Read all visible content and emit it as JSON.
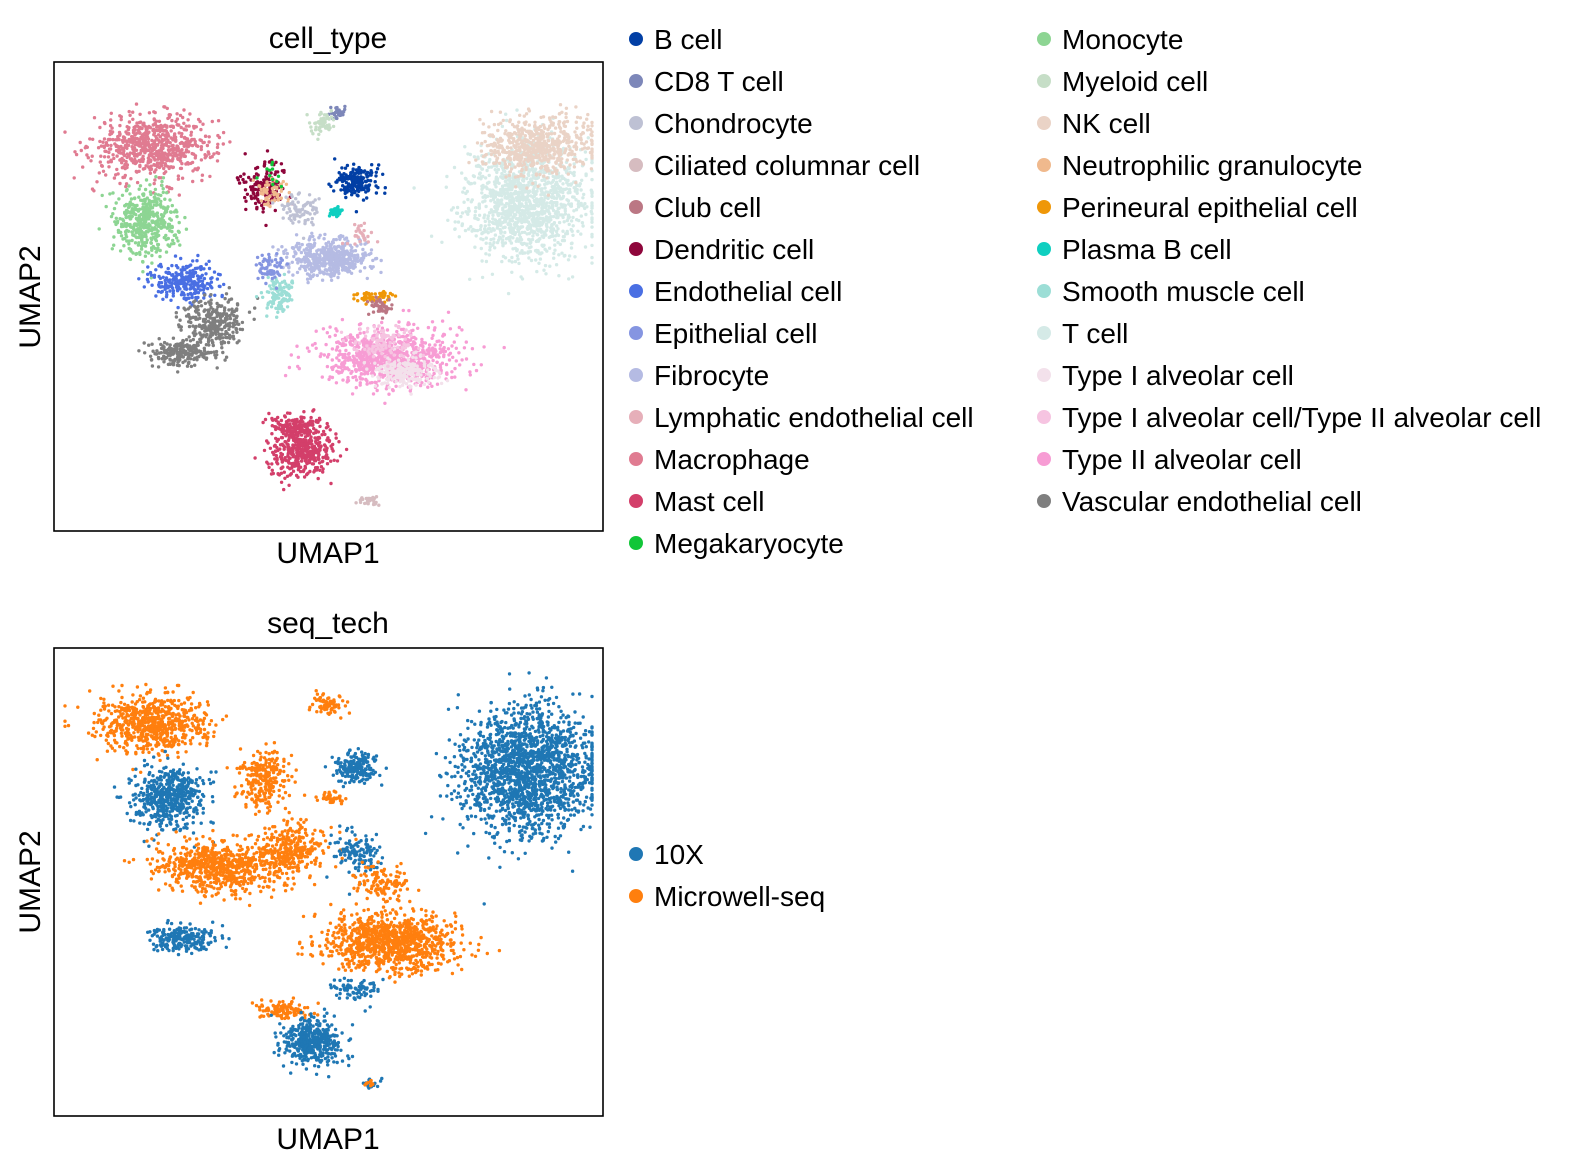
{
  "chart_data": [
    {
      "type": "scatter",
      "title": "cell_type",
      "xlabel": "UMAP1",
      "ylabel": "UMAP2",
      "ticks": "none",
      "grid": false,
      "legend_placement": "right, two columns",
      "categories": [
        {
          "name": "B cell",
          "color": "#023fa5"
        },
        {
          "name": "CD8 T cell",
          "color": "#7d87b9"
        },
        {
          "name": "Chondrocyte",
          "color": "#bec1d4"
        },
        {
          "name": "Ciliated columnar cell",
          "color": "#d6bcc0"
        },
        {
          "name": "Club cell",
          "color": "#bb7784"
        },
        {
          "name": "Dendritic cell",
          "color": "#8e063b"
        },
        {
          "name": "Endothelial cell",
          "color": "#4a6fe3"
        },
        {
          "name": "Epithelial cell",
          "color": "#8595e1"
        },
        {
          "name": "Fibrocyte",
          "color": "#b5bbe3"
        },
        {
          "name": "Lymphatic endothelial cell",
          "color": "#e6afb9"
        },
        {
          "name": "Macrophage",
          "color": "#e07b91"
        },
        {
          "name": "Mast cell",
          "color": "#d33f6a"
        },
        {
          "name": "Megakaryocyte",
          "color": "#11c638"
        },
        {
          "name": "Monocyte",
          "color": "#8dd593"
        },
        {
          "name": "Myeloid cell",
          "color": "#c6dec7"
        },
        {
          "name": "NK cell",
          "color": "#ead3c6"
        },
        {
          "name": "Neutrophilic granulocyte",
          "color": "#f0b98d"
        },
        {
          "name": "Perineural epithelial cell",
          "color": "#ef9708"
        },
        {
          "name": "Plasma B cell",
          "color": "#0fcfc0"
        },
        {
          "name": "Smooth muscle cell",
          "color": "#9cded6"
        },
        {
          "name": "T cell",
          "color": "#d5eae7"
        },
        {
          "name": "Type I alveolar cell",
          "color": "#f3e1eb"
        },
        {
          "name": "Type I alveolar cell/Type II alveolar cell",
          "color": "#f6c4e1"
        },
        {
          "name": "Type II alveolar cell",
          "color": "#f79cd4"
        },
        {
          "name": "Vascular endothelial cell",
          "color": "#7f7f7f"
        }
      ],
      "clusters": [
        {
          "category": "Macrophage",
          "cx": 0.18,
          "cy": 0.82,
          "sx": 0.1,
          "sy": 0.06,
          "n": 700
        },
        {
          "category": "Monocyte",
          "cx": 0.17,
          "cy": 0.66,
          "sx": 0.05,
          "sy": 0.065,
          "n": 450
        },
        {
          "category": "Dendritic cell",
          "cx": 0.38,
          "cy": 0.74,
          "sx": 0.04,
          "sy": 0.05,
          "n": 150
        },
        {
          "category": "Neutrophilic granulocyte",
          "cx": 0.4,
          "cy": 0.72,
          "sx": 0.025,
          "sy": 0.03,
          "n": 60
        },
        {
          "category": "T cell",
          "cx": 0.86,
          "cy": 0.7,
          "sx": 0.1,
          "sy": 0.11,
          "n": 1300
        },
        {
          "category": "NK cell",
          "cx": 0.88,
          "cy": 0.82,
          "sx": 0.09,
          "sy": 0.055,
          "n": 600
        },
        {
          "category": "B cell",
          "cx": 0.55,
          "cy": 0.745,
          "sx": 0.035,
          "sy": 0.03,
          "n": 200
        },
        {
          "category": "Plasma B cell",
          "cx": 0.513,
          "cy": 0.68,
          "sx": 0.01,
          "sy": 0.01,
          "n": 40
        },
        {
          "category": "CD8 T cell",
          "cx": 0.52,
          "cy": 0.89,
          "sx": 0.015,
          "sy": 0.012,
          "n": 35
        },
        {
          "category": "Myeloid cell",
          "cx": 0.49,
          "cy": 0.87,
          "sx": 0.02,
          "sy": 0.02,
          "n": 60
        },
        {
          "category": "Fibrocyte",
          "cx": 0.5,
          "cy": 0.58,
          "sx": 0.07,
          "sy": 0.035,
          "n": 500
        },
        {
          "category": "Endothelial cell",
          "cx": 0.24,
          "cy": 0.53,
          "sx": 0.05,
          "sy": 0.04,
          "n": 250
        },
        {
          "category": "Vascular endothelial cell",
          "cx": 0.29,
          "cy": 0.44,
          "sx": 0.05,
          "sy": 0.05,
          "n": 300
        },
        {
          "category": "Vascular endothelial cell",
          "cx": 0.23,
          "cy": 0.38,
          "sx": 0.05,
          "sy": 0.025,
          "n": 200
        },
        {
          "category": "Smooth muscle cell",
          "cx": 0.41,
          "cy": 0.5,
          "sx": 0.025,
          "sy": 0.035,
          "n": 120
        },
        {
          "category": "Perineural epithelial cell",
          "cx": 0.58,
          "cy": 0.5,
          "sx": 0.03,
          "sy": 0.012,
          "n": 50
        },
        {
          "category": "Club cell",
          "cx": 0.6,
          "cy": 0.48,
          "sx": 0.02,
          "sy": 0.02,
          "n": 40
        },
        {
          "category": "Type II alveolar cell",
          "cx": 0.61,
          "cy": 0.37,
          "sx": 0.11,
          "sy": 0.055,
          "n": 900
        },
        {
          "category": "Type I alveolar cell",
          "cx": 0.64,
          "cy": 0.34,
          "sx": 0.05,
          "sy": 0.03,
          "n": 200
        },
        {
          "category": "Type I alveolar cell/Type II alveolar cell",
          "cx": 0.6,
          "cy": 0.4,
          "sx": 0.05,
          "sy": 0.03,
          "n": 100
        },
        {
          "category": "Mast cell",
          "cx": 0.45,
          "cy": 0.17,
          "sx": 0.05,
          "sy": 0.045,
          "n": 400
        },
        {
          "category": "Mast cell",
          "cx": 0.44,
          "cy": 0.225,
          "sx": 0.045,
          "sy": 0.02,
          "n": 150
        },
        {
          "category": "Chondrocyte",
          "cx": 0.45,
          "cy": 0.68,
          "sx": 0.03,
          "sy": 0.03,
          "n": 80
        },
        {
          "category": "Epithelial cell",
          "cx": 0.39,
          "cy": 0.56,
          "sx": 0.03,
          "sy": 0.03,
          "n": 60
        },
        {
          "category": "Lymphatic endothelial cell",
          "cx": 0.56,
          "cy": 0.63,
          "sx": 0.02,
          "sy": 0.02,
          "n": 30
        },
        {
          "category": "Ciliated columnar cell",
          "cx": 0.575,
          "cy": 0.065,
          "sx": 0.02,
          "sy": 0.008,
          "n": 30
        },
        {
          "category": "Megakaryocyte",
          "cx": 0.4,
          "cy": 0.76,
          "sx": 0.03,
          "sy": 0.03,
          "n": 12
        }
      ]
    },
    {
      "type": "scatter",
      "title": "seq_tech",
      "xlabel": "UMAP1",
      "ylabel": "UMAP2",
      "ticks": "none",
      "grid": false,
      "legend_placement": "right",
      "categories": [
        {
          "name": "10X",
          "color": "#1f77b4"
        },
        {
          "name": "Microwell-seq",
          "color": "#ff7f0e"
        }
      ],
      "clusters": [
        {
          "category": "Microwell-seq",
          "cx": 0.18,
          "cy": 0.84,
          "sx": 0.09,
          "sy": 0.055,
          "n": 700
        },
        {
          "category": "10X",
          "cx": 0.21,
          "cy": 0.68,
          "sx": 0.06,
          "sy": 0.06,
          "n": 500
        },
        {
          "category": "Microwell-seq",
          "cx": 0.38,
          "cy": 0.72,
          "sx": 0.04,
          "sy": 0.06,
          "n": 260
        },
        {
          "category": "Microwell-seq",
          "cx": 0.5,
          "cy": 0.88,
          "sx": 0.025,
          "sy": 0.02,
          "n": 80
        },
        {
          "category": "10X",
          "cx": 0.55,
          "cy": 0.745,
          "sx": 0.035,
          "sy": 0.03,
          "n": 200
        },
        {
          "category": "Microwell-seq",
          "cx": 0.51,
          "cy": 0.68,
          "sx": 0.02,
          "sy": 0.012,
          "n": 40
        },
        {
          "category": "10X",
          "cx": 0.86,
          "cy": 0.74,
          "sx": 0.11,
          "sy": 0.12,
          "n": 1800
        },
        {
          "category": "Microwell-seq",
          "cx": 0.3,
          "cy": 0.53,
          "sx": 0.1,
          "sy": 0.05,
          "n": 700
        },
        {
          "category": "Microwell-seq",
          "cx": 0.43,
          "cy": 0.57,
          "sx": 0.06,
          "sy": 0.05,
          "n": 300
        },
        {
          "category": "10X",
          "cx": 0.55,
          "cy": 0.56,
          "sx": 0.04,
          "sy": 0.05,
          "n": 120
        },
        {
          "category": "Microwell-seq",
          "cx": 0.6,
          "cy": 0.5,
          "sx": 0.05,
          "sy": 0.03,
          "n": 120
        },
        {
          "category": "10X",
          "cx": 0.23,
          "cy": 0.38,
          "sx": 0.05,
          "sy": 0.025,
          "n": 220
        },
        {
          "category": "Microwell-seq",
          "cx": 0.61,
          "cy": 0.37,
          "sx": 0.11,
          "sy": 0.055,
          "n": 1000
        },
        {
          "category": "10X",
          "cx": 0.55,
          "cy": 0.27,
          "sx": 0.04,
          "sy": 0.02,
          "n": 80
        },
        {
          "category": "Microwell-seq",
          "cx": 0.42,
          "cy": 0.225,
          "sx": 0.04,
          "sy": 0.015,
          "n": 120
        },
        {
          "category": "10X",
          "cx": 0.47,
          "cy": 0.16,
          "sx": 0.05,
          "sy": 0.045,
          "n": 420
        },
        {
          "category": "10X",
          "cx": 0.575,
          "cy": 0.065,
          "sx": 0.015,
          "sy": 0.008,
          "n": 20
        },
        {
          "category": "Microwell-seq",
          "cx": 0.575,
          "cy": 0.07,
          "sx": 0.01,
          "sy": 0.008,
          "n": 12
        }
      ]
    }
  ]
}
